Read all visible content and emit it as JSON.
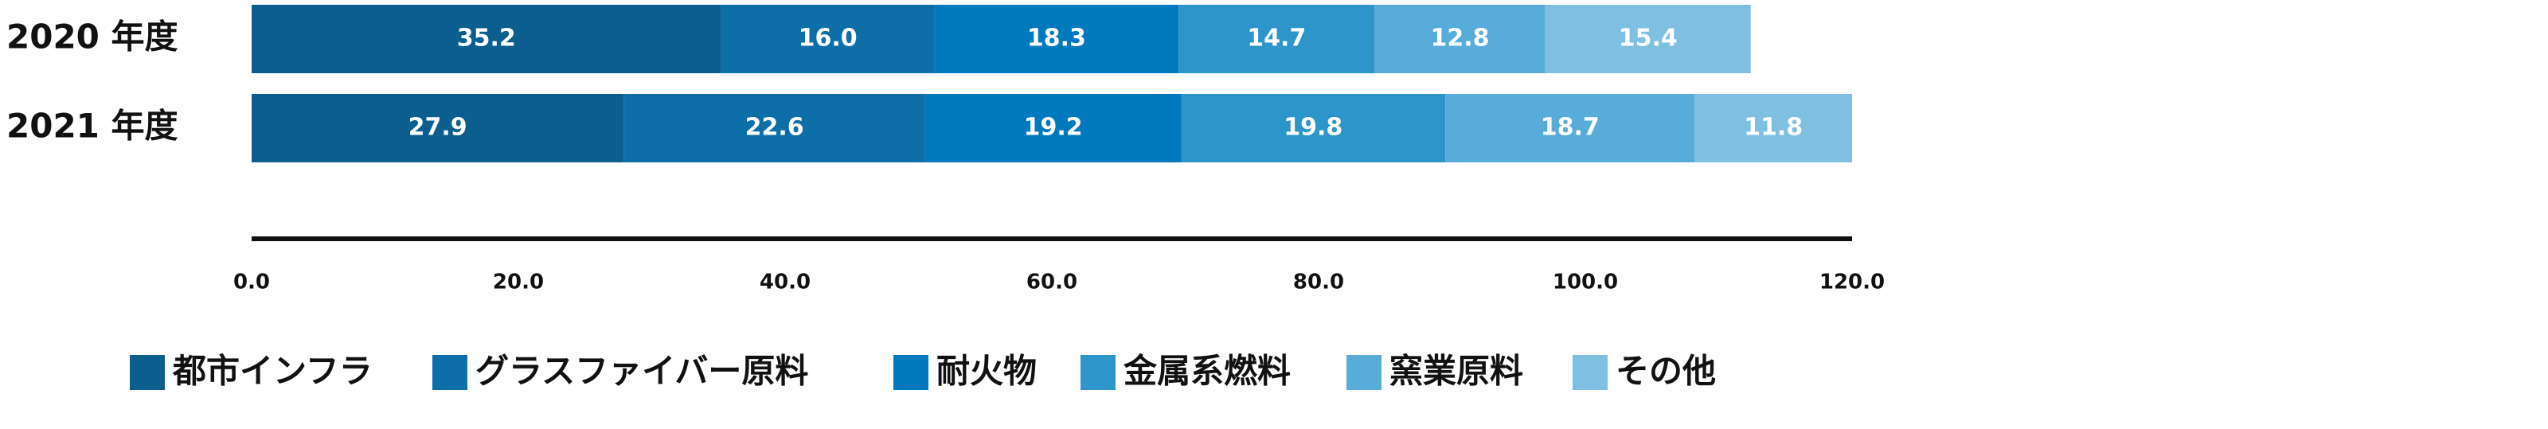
{
  "chart_data": {
    "type": "stacked-bar-horizontal",
    "categories": [
      "2020 年度",
      "2021 年度"
    ],
    "series": [
      {
        "name": "都市インフラ",
        "color": "#0b5e8e",
        "values": [
          35.2,
          27.9
        ],
        "value_labels": [
          "35.2",
          "27.9"
        ]
      },
      {
        "name": "グラスファイバー原料",
        "color": "#0e6fa8",
        "values": [
          16.0,
          22.6
        ],
        "value_labels": [
          "16.0",
          "22.6"
        ]
      },
      {
        "name": "耐火物",
        "color": "#0079bf",
        "values": [
          18.3,
          19.2
        ],
        "value_labels": [
          "18.3",
          "19.2"
        ]
      },
      {
        "name": "金属系燃料",
        "color": "#2e95ca",
        "values": [
          14.7,
          19.8
        ],
        "value_labels": [
          "14.7",
          "19.8"
        ]
      },
      {
        "name": "窯業原料",
        "color": "#58acd9",
        "values": [
          12.8,
          18.7
        ],
        "value_labels": [
          "12.8",
          "18.7"
        ]
      },
      {
        "name": "その他",
        "color": "#7fbfe2",
        "values": [
          15.4,
          11.8
        ],
        "value_labels": [
          "15.4",
          "11.8"
        ]
      }
    ],
    "xlim": [
      0,
      120
    ],
    "xticks": [
      {
        "value": 0,
        "label": "0.0"
      },
      {
        "value": 20,
        "label": "20.0"
      },
      {
        "value": 40,
        "label": "40.0"
      },
      {
        "value": 60,
        "label": "60.0"
      },
      {
        "value": 80,
        "label": "80.0"
      },
      {
        "value": 100,
        "label": "100.0"
      },
      {
        "value": 120,
        "label": "120.0"
      }
    ],
    "grid": false
  }
}
